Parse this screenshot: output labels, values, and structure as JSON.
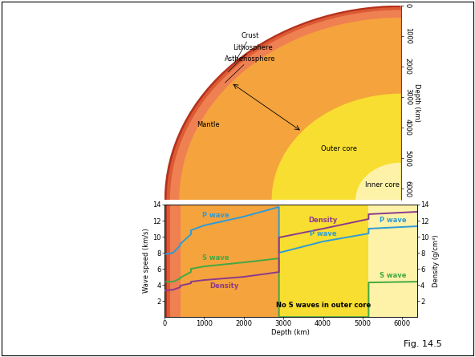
{
  "figure_label": "Fig. 14.5",
  "cross_section": {
    "depth_axis": {
      "label": "Depth (km)",
      "ticks": [
        0,
        1000,
        2000,
        3000,
        4000,
        5000,
        6000
      ],
      "max": 6371
    },
    "layers": [
      {
        "name": "Crust",
        "top": 0,
        "bottom": 60,
        "color": "#b5321c"
      },
      {
        "name": "Lithosphere",
        "top": 60,
        "bottom": 150,
        "color": "#dc5a34"
      },
      {
        "name": "Asthenosphere",
        "top": 150,
        "bottom": 400,
        "color": "#ee8052"
      },
      {
        "name": "Mantle",
        "top": 400,
        "bottom": 2890,
        "color": "#f5a33c"
      },
      {
        "name": "Outer core",
        "top": 2890,
        "bottom": 5150,
        "color": "#f8de30"
      },
      {
        "name": "Inner core",
        "top": 5150,
        "bottom": 6371,
        "color": "#fdf2a8"
      }
    ]
  },
  "chart_data": {
    "type": "line",
    "x_label": "Depth (km)",
    "y_label": "Wave speed (km/s)",
    "y2_label": "Density (g/cm³)",
    "x": [
      0,
      220,
      400,
      400,
      670,
      670,
      1000,
      2000,
      2890,
      2890,
      4000,
      5150,
      5150,
      6371
    ],
    "series": [
      {
        "name": "P wave",
        "color": "#2e9bd6",
        "values": [
          7.8,
          8.0,
          8.9,
          9.1,
          10.3,
          10.8,
          11.4,
          12.5,
          13.7,
          8.0,
          9.4,
          10.4,
          11.0,
          11.3
        ]
      },
      {
        "name": "S wave",
        "color": "#43a843",
        "values": [
          4.4,
          4.4,
          4.8,
          4.9,
          5.6,
          6.0,
          6.3,
          6.8,
          7.3,
          0,
          0,
          0,
          4.3,
          4.4
        ]
      },
      {
        "name": "Density",
        "color": "#8b3a8b",
        "axis": "y2",
        "values": [
          3.3,
          3.4,
          3.7,
          3.9,
          4.2,
          4.4,
          4.6,
          5.0,
          5.6,
          9.9,
          11.0,
          12.2,
          12.8,
          13.1
        ]
      }
    ],
    "xlim": [
      0,
      6371
    ],
    "xticks": [
      0,
      1000,
      2000,
      3000,
      4000,
      5000,
      6000
    ],
    "ylim": [
      0,
      14
    ],
    "yticks": [
      2,
      4,
      6,
      8,
      10,
      12,
      14
    ],
    "y2lim": [
      0,
      14
    ],
    "y2ticks": [
      2,
      4,
      6,
      8,
      10,
      12,
      14
    ],
    "grid": false,
    "annotations": [
      "Density",
      "P wave",
      "P wave",
      "S wave",
      "No S waves in outer core"
    ]
  }
}
